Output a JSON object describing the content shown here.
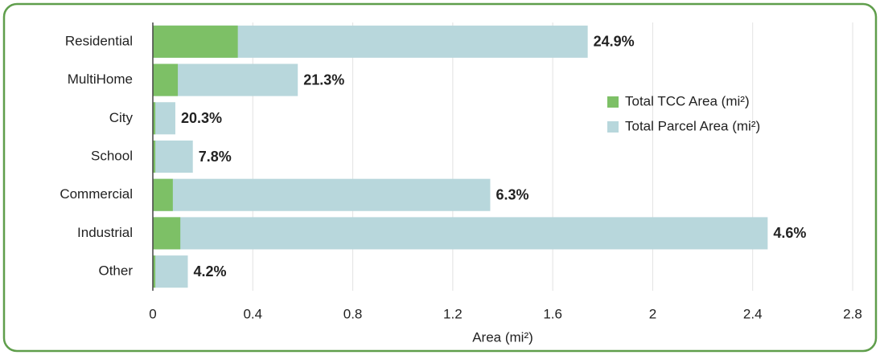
{
  "chart_data": {
    "type": "overlapped_barh",
    "xlabel": "Area (mi²)",
    "categories": [
      "Residential",
      "MultiHome",
      "City",
      "School",
      "Commercial",
      "Industrial",
      "Other"
    ],
    "series": [
      {
        "name": "Total TCC Area (mi²)",
        "color": "#7dc066",
        "values": [
          0.34,
          0.1,
          0.01,
          0.01,
          0.08,
          0.11,
          0.01
        ]
      },
      {
        "name": "Total Parcel Area (mi²)",
        "color": "#b8d7dc",
        "values": [
          1.74,
          0.58,
          0.09,
          0.16,
          1.35,
          2.46,
          0.14
        ]
      }
    ],
    "bar_labels": [
      "24.9%",
      "21.3%",
      "20.3%",
      "7.8%",
      "6.3%",
      "4.6%",
      "4.2%"
    ],
    "xlim": [
      0,
      2.8
    ],
    "xticks": [
      0,
      0.4,
      0.8,
      1.2,
      1.6,
      2,
      2.4,
      2.8
    ],
    "grid": true,
    "legend": "upper right"
  }
}
